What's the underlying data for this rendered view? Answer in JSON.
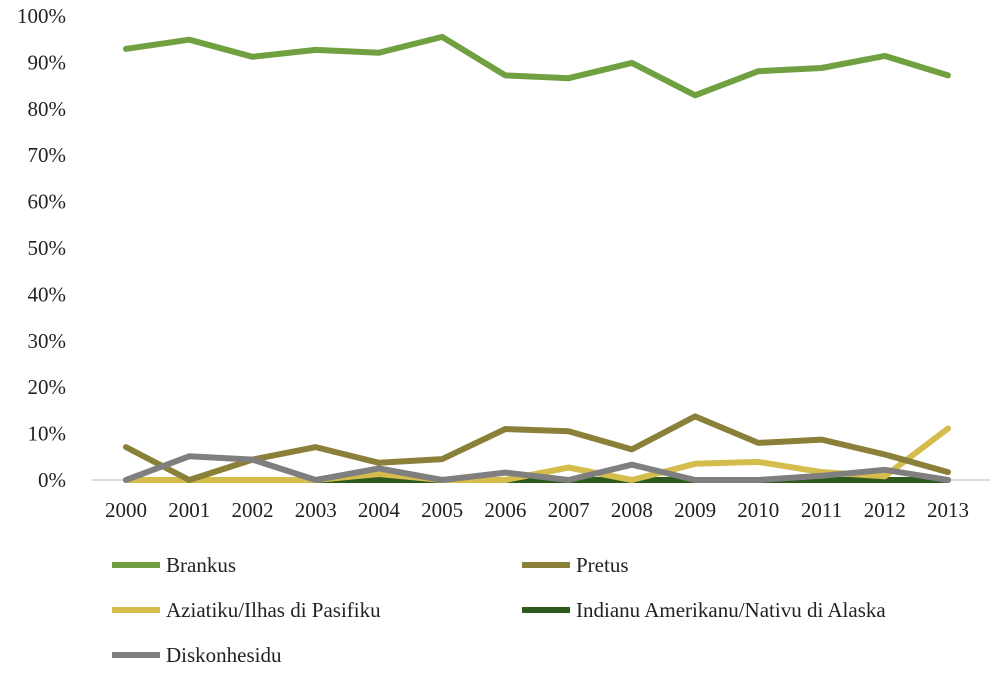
{
  "chart_data": {
    "type": "line",
    "title": "",
    "xlabel": "",
    "ylabel": "",
    "categories": [
      "2000",
      "2001",
      "2002",
      "2003",
      "2004",
      "2005",
      "2006",
      "2007",
      "2008",
      "2009",
      "2010",
      "2011",
      "2012",
      "2013"
    ],
    "ylim": [
      0,
      100
    ],
    "yticks": [
      0,
      10,
      20,
      30,
      40,
      50,
      60,
      70,
      80,
      90,
      100
    ],
    "ytick_labels": [
      "0%",
      "10%",
      "20%",
      "30%",
      "40%",
      "50%",
      "60%",
      "70%",
      "80%",
      "90%",
      "100%"
    ],
    "grid": false,
    "legend_position": "bottom",
    "series": [
      {
        "name": "Brankus",
        "color": "#70a040",
        "values": [
          92.9,
          94.9,
          91.2,
          92.7,
          92.1,
          95.5,
          87.2,
          86.6,
          89.9,
          82.9,
          88.1,
          88.8,
          91.4,
          87.2
        ]
      },
      {
        "name": "Pretus",
        "color": "#8b803a",
        "values": [
          7.1,
          0.0,
          4.4,
          7.1,
          3.7,
          4.5,
          11.0,
          10.5,
          6.6,
          13.7,
          8.0,
          8.7,
          5.5,
          1.7
        ]
      },
      {
        "name": "Aziatiku/Ilhas di Pasifiku",
        "color": "#d4bd4c",
        "values": [
          0.0,
          0.0,
          0.0,
          0.0,
          1.3,
          0.0,
          0.0,
          2.7,
          0.0,
          3.5,
          3.9,
          1.7,
          0.8,
          11.1
        ]
      },
      {
        "name": "Indianu Amerikanu/Nativu di Alaska",
        "color": "#2f5a1e",
        "values": [
          0,
          0,
          0,
          0,
          0,
          0,
          0,
          0,
          0,
          0,
          0,
          0,
          0,
          0
        ]
      },
      {
        "name": "Diskonhesidu",
        "color": "#7f7f7f",
        "values": [
          0.0,
          5.1,
          4.4,
          0.0,
          2.5,
          0.0,
          1.6,
          0.0,
          3.3,
          0.0,
          0.0,
          0.9,
          2.2,
          0.0
        ]
      }
    ]
  }
}
